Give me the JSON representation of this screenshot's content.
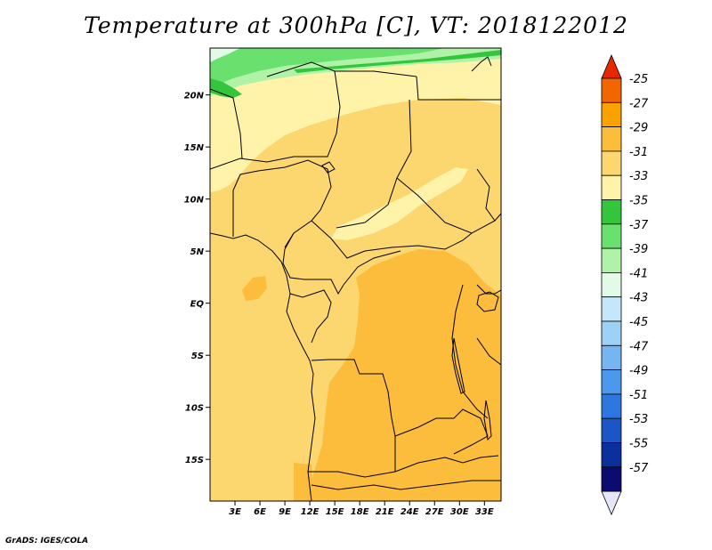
{
  "title": "Temperature at 300hPa [C], VT: 2018122012",
  "credit": "GrADS: IGES/COLA",
  "map": {
    "lon_range": [
      0,
      35
    ],
    "lat_range": [
      -19,
      24.5
    ],
    "lat_ticks": [
      {
        "label": "20N",
        "value": 20
      },
      {
        "label": "15N",
        "value": 15
      },
      {
        "label": "10N",
        "value": 10
      },
      {
        "label": "5N",
        "value": 5
      },
      {
        "label": "EQ",
        "value": 0
      },
      {
        "label": "5S",
        "value": -5
      },
      {
        "label": "10S",
        "value": -10
      },
      {
        "label": "15S",
        "value": -15
      }
    ],
    "lon_ticks": [
      {
        "label": "3E",
        "value": 3
      },
      {
        "label": "6E",
        "value": 6
      },
      {
        "label": "9E",
        "value": 9
      },
      {
        "label": "12E",
        "value": 12
      },
      {
        "label": "15E",
        "value": 15
      },
      {
        "label": "18E",
        "value": 18
      },
      {
        "label": "21E",
        "value": 21
      },
      {
        "label": "24E",
        "value": 24
      },
      {
        "label": "27E",
        "value": 27
      },
      {
        "label": "30E",
        "value": 30
      },
      {
        "label": "33E",
        "value": 33
      }
    ]
  },
  "colorbar": {
    "top_triangle_color": "#e62800",
    "bottom_triangle_color": "#e6e6fa",
    "bins": [
      {
        "label": "-25",
        "color": "#f26600"
      },
      {
        "label": "-27",
        "color": "#f9a200"
      },
      {
        "label": "-29",
        "color": "#fbbd3b"
      },
      {
        "label": "-31",
        "color": "#fcd66e"
      },
      {
        "label": "-33",
        "color": "#fef3a8"
      },
      {
        "label": "-35",
        "color": "#33c53c"
      },
      {
        "label": "-37",
        "color": "#6ae06e"
      },
      {
        "label": "-39",
        "color": "#b0f2a8"
      },
      {
        "label": "-41",
        "color": "#e2fae6"
      },
      {
        "label": "-43",
        "color": "#c6e7fb"
      },
      {
        "label": "-45",
        "color": "#9dd1f6"
      },
      {
        "label": "-47",
        "color": "#74b5f2"
      },
      {
        "label": "-49",
        "color": "#4c98ec"
      },
      {
        "label": "-51",
        "color": "#2f77e0"
      },
      {
        "label": "-53",
        "color": "#1b55c6"
      },
      {
        "label": "-55",
        "color": "#0b2f9c"
      },
      {
        "label": "-57",
        "color": "#0c0c70"
      }
    ]
  },
  "field_colors": {
    "base": "#fcd66e",
    "warm": "#fbbd3b",
    "cool": "#fef3a8",
    "green_dark": "#33c53c",
    "green_mid": "#6ae06e",
    "green_light": "#b0f2a8",
    "lightest": "#e2fae6"
  }
}
